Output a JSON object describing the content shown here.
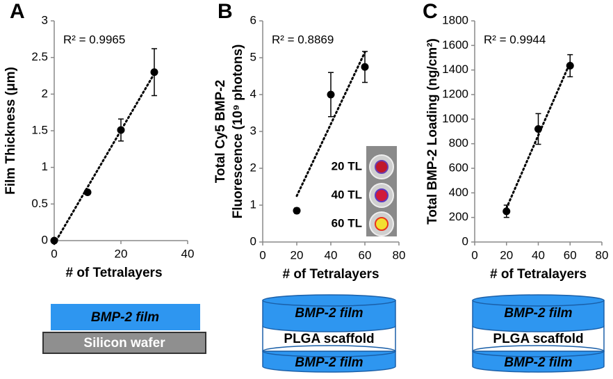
{
  "chart_data": [
    {
      "type": "scatter",
      "panel": "A",
      "ylabel": "Film Thickness (μm)",
      "xlabel": "# of Tetralayers",
      "annotation": "R² = 0.9965",
      "x": [
        0,
        10,
        20,
        30
      ],
      "values": [
        0,
        0.66,
        1.51,
        2.3
      ],
      "errors": [
        0,
        0.03,
        0.15,
        0.32
      ],
      "color": "#000000",
      "trendline": true,
      "xlim": [
        0,
        40
      ],
      "xticks": [
        0,
        20,
        40
      ],
      "ylim": [
        0,
        3
      ],
      "yticks": [
        0,
        0.5,
        1,
        1.5,
        2,
        2.5,
        3
      ]
    },
    {
      "type": "scatter",
      "panel": "B",
      "ylabel": [
        "Total Cy5 BMP-2",
        "Fluorescence (10⁹ photons)"
      ],
      "xlabel": "# of Tetralayers",
      "annotation": "R² = 0.8869",
      "x": [
        20,
        40,
        60
      ],
      "values": [
        0.85,
        4.0,
        4.75
      ],
      "errors": [
        0.07,
        0.6,
        0.42
      ],
      "color": "#000000",
      "trendline": true,
      "xlim": [
        0,
        80
      ],
      "xticks": [
        0,
        20,
        40,
        60,
        80
      ],
      "ylim": [
        0,
        6
      ],
      "yticks": [
        0,
        1,
        2,
        3,
        4,
        5,
        6
      ],
      "inset_labels": [
        "20 TL",
        "40 TL",
        "60 TL"
      ]
    },
    {
      "type": "scatter",
      "panel": "C",
      "ylabel": "Total BMP-2 Loading (ng/cm²)",
      "xlabel": "# of Tetralayers",
      "annotation": "R² = 0.9944",
      "x": [
        20,
        40,
        60
      ],
      "values": [
        250,
        920,
        1435
      ],
      "errors": [
        50,
        125,
        90
      ],
      "color": "#000000",
      "trendline": true,
      "xlim": [
        0,
        80
      ],
      "xticks": [
        0,
        20,
        40,
        60,
        80
      ],
      "ylim": [
        0,
        1800
      ],
      "yticks": [
        0,
        200,
        400,
        600,
        800,
        1000,
        1200,
        1400,
        1600,
        1800
      ]
    }
  ],
  "diagrams": [
    {
      "film": "BMP-2 film",
      "substrate": "Silicon wafer"
    },
    {
      "top": "BMP-2 film",
      "middle": "PLGA scaffold",
      "bottom": "BMP-2 film"
    },
    {
      "top": "BMP-2 film",
      "middle": "PLGA scaffold",
      "bottom": "BMP-2 film"
    }
  ]
}
